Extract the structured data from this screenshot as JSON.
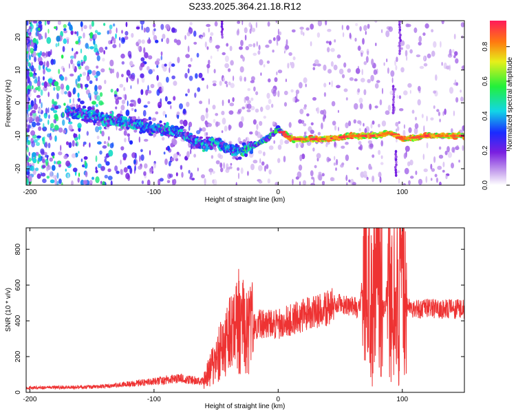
{
  "chart_data": [
    {
      "type": "heatmap",
      "title": "S233.2025.364.21.18.R12",
      "xlabel": "Height of straight line (km)",
      "ylabel": "Frequency (Hz)",
      "xlim": [
        -203,
        150
      ],
      "ylim": [
        -25,
        25
      ],
      "xticks": [
        -200,
        -100,
        0,
        100
      ],
      "yticks": [
        -20,
        -10,
        0,
        10,
        20
      ],
      "colorbar": {
        "label": "Normalized spectral amplitude",
        "range": [
          0.0,
          0.95
        ],
        "ticks": [
          0.0,
          0.2,
          0.4,
          0.6,
          0.8
        ],
        "tick_labels": [
          "0.0",
          "0.2",
          "0.4",
          "0.6",
          "0.8"
        ]
      },
      "ridge": {
        "x": [
          -160,
          -140,
          -120,
          -100,
          -85,
          -70,
          -60,
          -50,
          -40,
          -30,
          -20,
          -10,
          0,
          10,
          20,
          40,
          60,
          80,
          90,
          100,
          120,
          150
        ],
        "freq": [
          -3,
          -5,
          -6,
          -8,
          -8,
          -11,
          -13,
          -12,
          -14,
          -15,
          -13,
          -11,
          -8,
          -11,
          -11,
          -11,
          -10,
          -10,
          -9,
          -11,
          -10,
          -10
        ]
      }
    },
    {
      "type": "line",
      "title": "",
      "xlabel": "Height of straight line (km)",
      "ylabel": "SNR (10 * v/v)",
      "xlim": [
        -203,
        150
      ],
      "ylim": [
        0,
        920
      ],
      "xticks": [
        -200,
        -100,
        0,
        100
      ],
      "yticks": [
        0,
        200,
        400,
        600,
        800
      ],
      "series": [
        {
          "name": "SNR",
          "color": "#ee3333",
          "envelope": {
            "x": [
              -203,
              -150,
              -130,
              -100,
              -80,
              -60,
              -45,
              -35,
              -20,
              0,
              20,
              40,
              50,
              65,
              70,
              75,
              80,
              85,
              90,
              95,
              100,
              103,
              110,
              130,
              150
            ],
            "y": [
              25,
              30,
              40,
              60,
              80,
              60,
              250,
              400,
              380,
              380,
              430,
              470,
              500,
              470,
              650,
              500,
              700,
              450,
              650,
              450,
              700,
              480,
              470,
              465,
              465
            ]
          }
        }
      ]
    }
  ]
}
